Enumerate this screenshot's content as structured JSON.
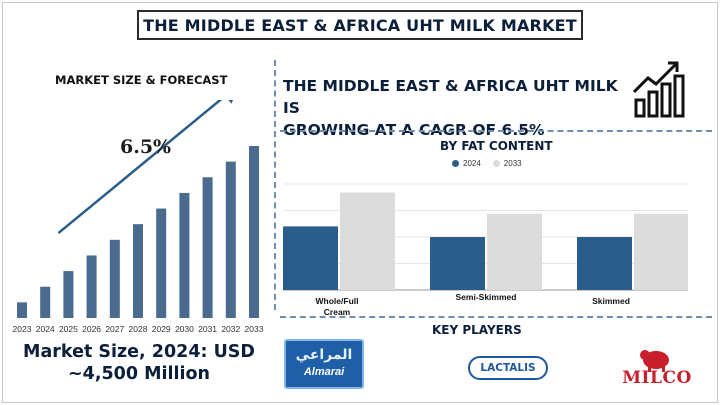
{
  "header": {
    "title": "THE MIDDLE EAST & AFRICA UHT MILK MARKET"
  },
  "left": {
    "subtitle": "MARKET SIZE & FORECAST",
    "cagr_label": "6.5%",
    "market_size_line1": "Market Size, 2024: USD",
    "market_size_line2": "~4,500 Million"
  },
  "right": {
    "headline_line1": "THE MIDDLE EAST & AFRICA UHT MILK IS",
    "headline_line2": "GROWING AT A CAGR OF 6.5%",
    "fat_title": "BY FAT CONTENT",
    "key_players_title": "KEY PLAYERS",
    "players": {
      "almarai_ar": "المراعي",
      "almarai_en": "Almarai",
      "lactalis": "LACTALIS",
      "milco": "MILCO"
    }
  },
  "colors": {
    "navy": "#0b1f3a",
    "bar_blue": "#4a6a8e",
    "series_2024": "#2a5d8a",
    "series_2033": "#dcdcdc"
  },
  "chart_data": [
    {
      "type": "bar",
      "title": "MARKET SIZE & FORECAST",
      "categories": [
        "2023",
        "2024",
        "2025",
        "2026",
        "2027",
        "2028",
        "2029",
        "2030",
        "2031",
        "2032",
        "2033"
      ],
      "values": [
        1,
        2,
        3,
        4,
        5,
        6,
        7,
        8,
        9,
        10,
        11
      ],
      "annotation": "6.5%"
    },
    {
      "type": "bar",
      "title": "BY FAT CONTENT",
      "categories": [
        "Whole/Full Cream",
        "Semi-Skimmed",
        "Skimmed"
      ],
      "series": [
        {
          "name": "2024",
          "values": [
            60,
            50,
            50
          ]
        },
        {
          "name": "2033",
          "values": [
            92,
            72,
            72
          ]
        }
      ],
      "ylim": [
        0,
        100
      ],
      "grid": true,
      "legend": "top-center"
    }
  ]
}
